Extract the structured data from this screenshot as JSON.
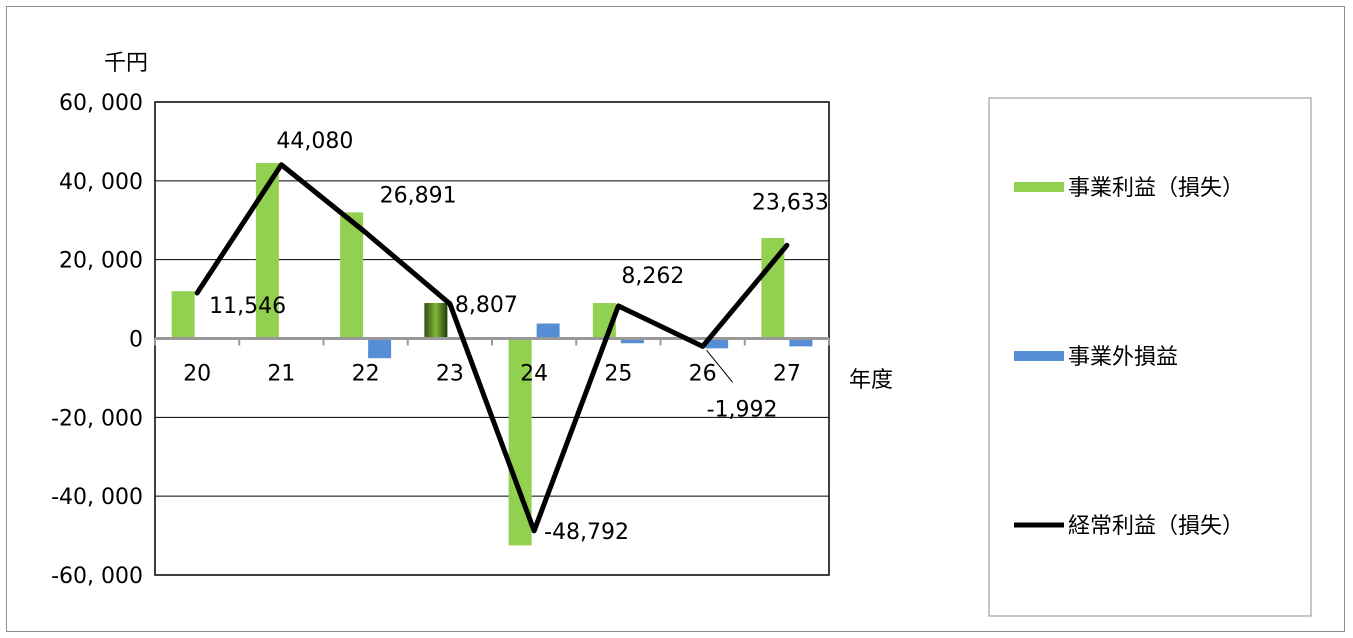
{
  "chart_data": {
    "type": "bar",
    "title": "",
    "ylabel": "千円",
    "xlabel": "年度",
    "ylim": [
      -60000,
      60000
    ],
    "yticks": [
      60000,
      40000,
      20000,
      0,
      -20000,
      -40000,
      -60000
    ],
    "ytick_labels": [
      "60, 000",
      "40, 000",
      "20, 000",
      "0",
      "-20, 000",
      "-40, 000",
      "-60, 000"
    ],
    "grid": true,
    "legend_position": "right",
    "categories": [
      "20",
      "21",
      "22",
      "23",
      "24",
      "25",
      "26",
      "27"
    ],
    "series": [
      {
        "name": "事業利益（損失）",
        "kind": "bar",
        "color": "#92d050",
        "values": [
          12000,
          44500,
          32000,
          9000,
          -52500,
          9000,
          0,
          25500
        ]
      },
      {
        "name": "事業外損益",
        "kind": "bar",
        "color": "#558ed5",
        "values": [
          0,
          0,
          -5000,
          0,
          3800,
          -1200,
          -2500,
          -2000
        ]
      },
      {
        "name": "経常利益（損失）",
        "kind": "line",
        "color": "#000000",
        "values": [
          11546,
          44080,
          26891,
          8807,
          -48792,
          8262,
          -1992,
          23633
        ],
        "labels": [
          "11,546",
          "44,080",
          "26,891",
          "8,807",
          "-48,792",
          "8,262",
          "-1,992",
          "23,633"
        ]
      }
    ]
  }
}
